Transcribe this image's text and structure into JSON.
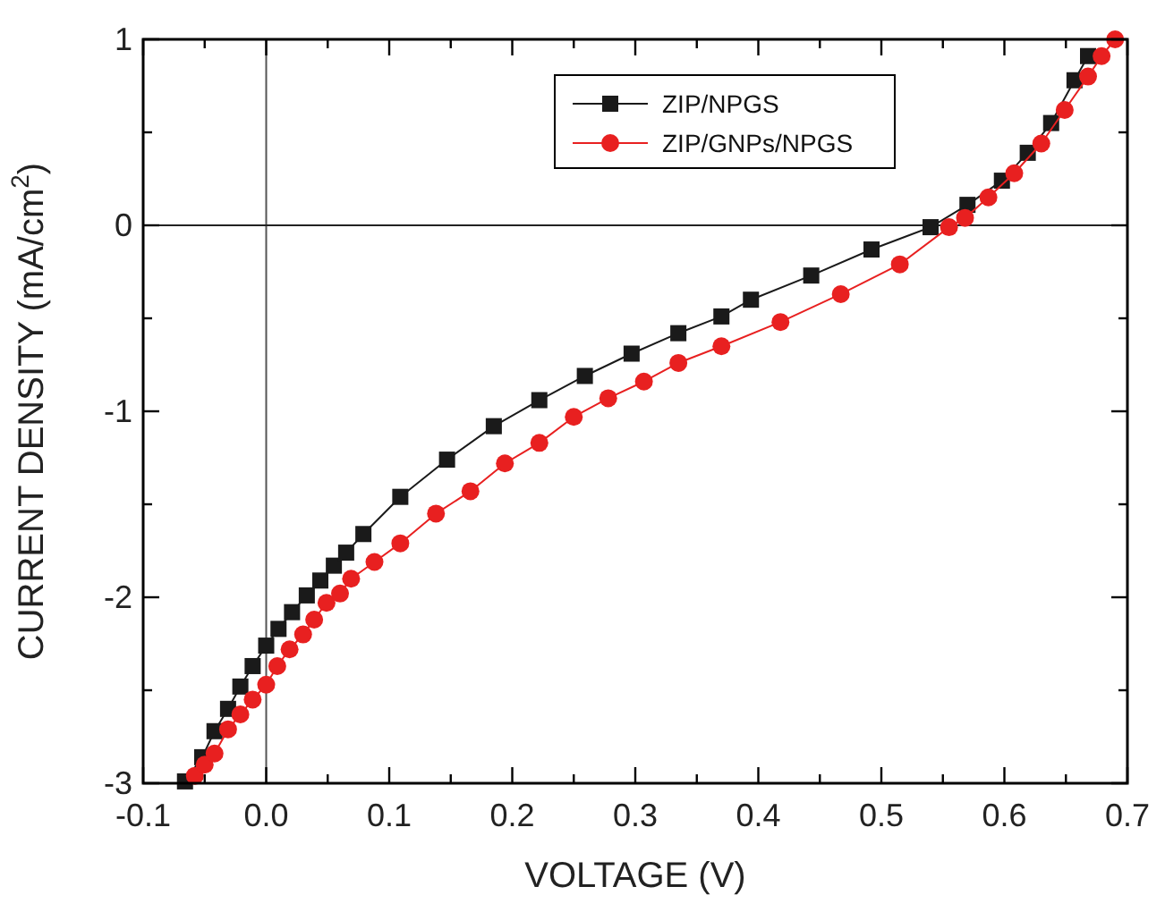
{
  "chart_data": {
    "type": "line",
    "xlabel": "VOLTAGE (V)",
    "ylabel": "CURRENT DENSITY (mA/cm$^{2}$)",
    "xlim": [
      -0.1,
      0.7
    ],
    "ylim": [
      -3,
      1
    ],
    "xticks": [
      {
        "value": -0.1,
        "label": "-0.1"
      },
      {
        "value": -0.05,
        "label": null
      },
      {
        "value": 0,
        "label": "0.0"
      },
      {
        "value": 0.05,
        "label": null
      },
      {
        "value": 0.1,
        "label": "0.1"
      },
      {
        "value": 0.15,
        "label": null
      },
      {
        "value": 0.2,
        "label": "0.2"
      },
      {
        "value": 0.25,
        "label": null
      },
      {
        "value": 0.3,
        "label": "0.3"
      },
      {
        "value": 0.35,
        "label": null
      },
      {
        "value": 0.4,
        "label": "0.4"
      },
      {
        "value": 0.45,
        "label": null
      },
      {
        "value": 0.5,
        "label": "0.5"
      },
      {
        "value": 0.55,
        "label": null
      },
      {
        "value": 0.6,
        "label": "0.6"
      },
      {
        "value": 0.65,
        "label": null
      },
      {
        "value": 0.7,
        "label": "0.7"
      }
    ],
    "yticks": [
      -3,
      {
        "value": -2.5,
        "label": null
      },
      -2,
      {
        "value": -1.5,
        "label": null
      },
      -1,
      {
        "value": -0.5,
        "label": null
      },
      0,
      {
        "value": 0.5,
        "label": null
      },
      1
    ],
    "grid": false,
    "legend": "top",
    "line_style": "solid",
    "ref_lines": [
      {
        "axis": "x",
        "value": 0,
        "color": "#555555"
      },
      {
        "axis": "y",
        "value": 0,
        "color": "#222222"
      }
    ],
    "series": [
      {
        "name": "ZIP/NPGS",
        "color": "#1a1a1a",
        "marker": "square",
        "x": [
          -0.066,
          -0.052,
          -0.042,
          -0.031,
          -0.021,
          -0.011,
          0.0,
          0.01,
          0.021,
          0.033,
          0.044,
          0.055,
          0.065,
          0.079,
          0.109,
          0.147,
          0.185,
          0.222,
          0.259,
          0.297,
          0.335,
          0.37,
          0.394,
          0.443,
          0.492,
          0.54,
          0.57,
          0.598,
          0.619,
          0.638,
          0.657,
          0.668
        ],
        "values": [
          -2.99,
          -2.86,
          -2.72,
          -2.6,
          -2.48,
          -2.37,
          -2.26,
          -2.17,
          -2.08,
          -1.99,
          -1.91,
          -1.83,
          -1.76,
          -1.66,
          -1.46,
          -1.26,
          -1.08,
          -0.94,
          -0.81,
          -0.69,
          -0.58,
          -0.49,
          -0.4,
          -0.27,
          -0.13,
          -0.01,
          0.11,
          0.24,
          0.39,
          0.55,
          0.78,
          0.91
        ]
      },
      {
        "name": "ZIP/GNPs/NPGS",
        "color": "#e82020",
        "marker": "circle",
        "x": [
          -0.058,
          -0.05,
          -0.042,
          -0.031,
          -0.021,
          -0.011,
          0.0,
          0.009,
          0.019,
          0.03,
          0.039,
          0.049,
          0.06,
          0.069,
          0.088,
          0.109,
          0.138,
          0.166,
          0.194,
          0.222,
          0.25,
          0.278,
          0.307,
          0.335,
          0.37,
          0.418,
          0.467,
          0.515,
          0.555,
          0.568,
          0.587,
          0.608,
          0.63,
          0.649,
          0.668,
          0.679,
          0.69
        ],
        "values": [
          -2.96,
          -2.9,
          -2.84,
          -2.71,
          -2.63,
          -2.55,
          -2.47,
          -2.37,
          -2.28,
          -2.2,
          -2.12,
          -2.03,
          -1.98,
          -1.9,
          -1.81,
          -1.71,
          -1.55,
          -1.43,
          -1.28,
          -1.17,
          -1.03,
          -0.93,
          -0.84,
          -0.74,
          -0.65,
          -0.52,
          -0.37,
          -0.21,
          -0.01,
          0.04,
          0.15,
          0.28,
          0.44,
          0.62,
          0.8,
          0.91,
          1.0
        ]
      }
    ]
  }
}
